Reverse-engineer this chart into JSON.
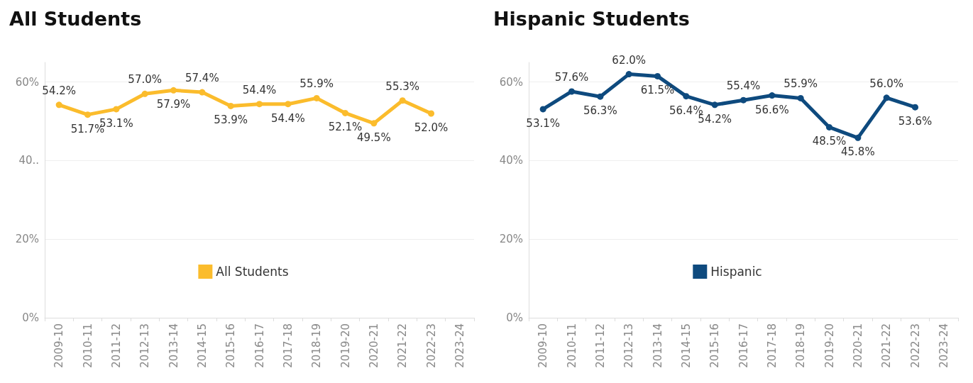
{
  "chart_data": [
    {
      "type": "line",
      "title": "All Students",
      "categories": [
        "2009-10",
        "2010-11",
        "2011-12",
        "2012-13",
        "2013-14",
        "2014-15",
        "2015-16",
        "2016-17",
        "2017-18",
        "2018-19",
        "2019-20",
        "2020-21",
        "2021-22",
        "2022-23",
        "2023-24"
      ],
      "series": [
        {
          "name": "All Students",
          "color": "#fbbc2c",
          "values": [
            54.2,
            51.7,
            53.1,
            57.0,
            57.9,
            57.4,
            53.9,
            54.4,
            54.4,
            55.9,
            52.1,
            49.5,
            55.3,
            52.0,
            null
          ],
          "value_labels": [
            "54.2%",
            "51.7%",
            "53.1%",
            "57.0%",
            "57.9%",
            "57.4%",
            "53.9%",
            "54.4%",
            "54.4%",
            "55.9%",
            "52.1%",
            "49.5%",
            "55.3%",
            "52.0%",
            null
          ]
        }
      ],
      "ylim": [
        0,
        65
      ],
      "yticks": [
        {
          "value": 0,
          "label": "0%"
        },
        {
          "value": 20,
          "label": "20%"
        },
        {
          "value": 40,
          "label": "40.."
        },
        {
          "value": 60,
          "label": "60%"
        }
      ],
      "grid": "y",
      "legend": "bottom",
      "marker": "circle"
    },
    {
      "type": "line",
      "title": "Hispanic Students",
      "categories": [
        "2009-10",
        "2010-11",
        "2011-12",
        "2012-13",
        "2013-14",
        "2014-15",
        "2015-16",
        "2016-17",
        "2017-18",
        "2018-19",
        "2019-20",
        "2020-21",
        "2021-22",
        "2022-23",
        "2023-24"
      ],
      "series": [
        {
          "name": "Hispanic",
          "color": "#0e4a7e",
          "values": [
            53.1,
            57.6,
            56.3,
            62.0,
            61.5,
            56.4,
            54.2,
            55.4,
            56.6,
            55.9,
            48.5,
            45.8,
            56.0,
            53.6,
            null
          ],
          "value_labels": [
            "53.1%",
            "57.6%",
            "56.3%",
            "62.0%",
            "61.5%",
            "56.4%",
            "54.2%",
            "55.4%",
            "56.6%",
            "55.9%",
            "48.5%",
            "45.8%",
            "56.0%",
            "53.6%",
            null
          ]
        }
      ],
      "ylim": [
        0,
        65
      ],
      "yticks": [
        {
          "value": 0,
          "label": "0%"
        },
        {
          "value": 20,
          "label": "20%"
        },
        {
          "value": 40,
          "label": "40%"
        },
        {
          "value": 60,
          "label": "60%"
        }
      ],
      "grid": "y",
      "legend": "bottom",
      "marker": "circle"
    }
  ]
}
